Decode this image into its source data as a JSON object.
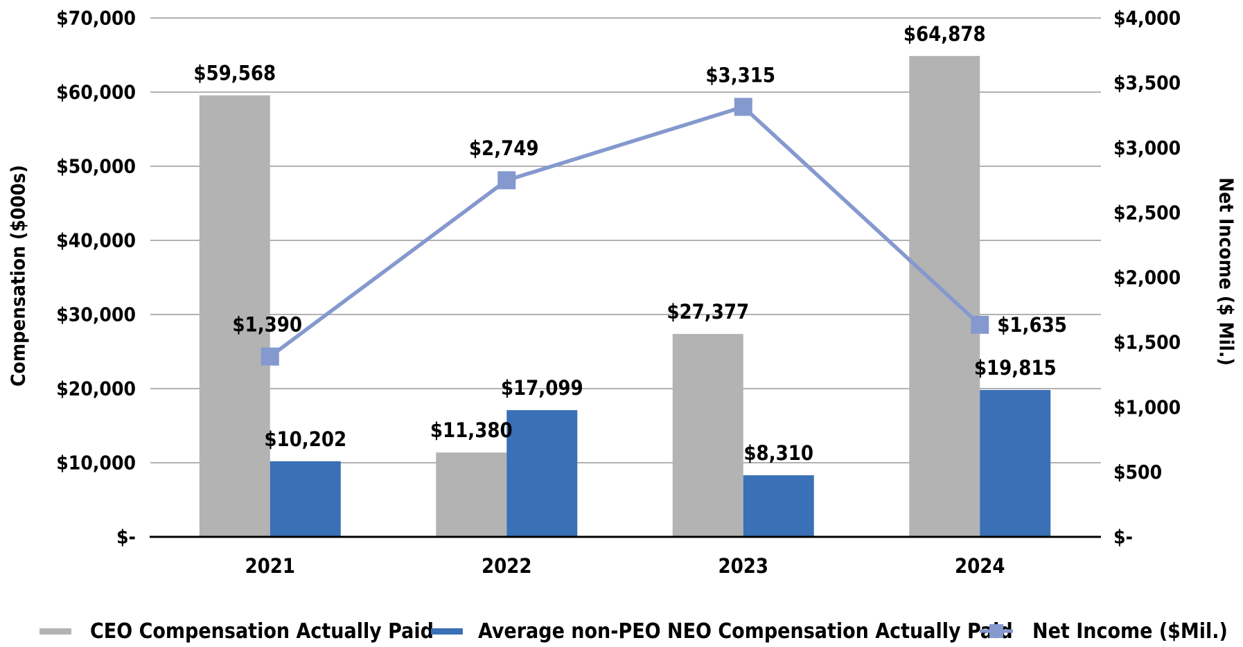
{
  "page": {
    "background": "#ffffff"
  },
  "chart_data": {
    "type": "combo-bar-line",
    "categories": [
      "2021",
      "2022",
      "2023",
      "2024"
    ],
    "series": [
      {
        "name": "CEO Compensation Actually Paid",
        "type": "bar",
        "axis": "left",
        "color": "#b3b3b3",
        "values": [
          59568,
          11380,
          27377,
          64878
        ],
        "labels": [
          "$59,568",
          "$11,380",
          "$27,377",
          "$64,878"
        ]
      },
      {
        "name": "Average non-PEO NEO Compensation Actually Paid",
        "type": "bar",
        "axis": "left",
        "color": "#3a70b6",
        "values": [
          10202,
          17099,
          8310,
          19815
        ],
        "labels": [
          "$10,202",
          "$17,099",
          "$8,310",
          "$19,815"
        ]
      },
      {
        "name": "Net Income ($Mil.)",
        "type": "line",
        "axis": "right",
        "color": "#8499ce",
        "marker": "square",
        "values": [
          1390,
          2749,
          3315,
          1635
        ],
        "labels": [
          "$1,390",
          "$2,749",
          "$3,315",
          "$1,635"
        ],
        "label_positions": [
          "above",
          "above",
          "above",
          "right"
        ]
      }
    ],
    "left_axis": {
      "title": "Compensation ($000s)",
      "min": 0,
      "max": 70000,
      "step": 10000,
      "tick_labels": [
        "$-",
        "$10,000",
        "$20,000",
        "$30,000",
        "$40,000",
        "$50,000",
        "$60,000",
        "$70,000"
      ]
    },
    "right_axis": {
      "title": "Net Income ($ Mil.)",
      "min": 0,
      "max": 4000,
      "step": 500,
      "tick_labels": [
        "$-",
        "$500",
        "$1,000",
        "$1,500",
        "$2,000",
        "$2,500",
        "$3,000",
        "$3,500",
        "$4,000"
      ]
    },
    "gridlines": {
      "source": "left-axis",
      "color": "#a6a6a6"
    },
    "baseline_color": "#000000",
    "text_color": "#000000",
    "legend": {
      "position": "bottom"
    }
  }
}
